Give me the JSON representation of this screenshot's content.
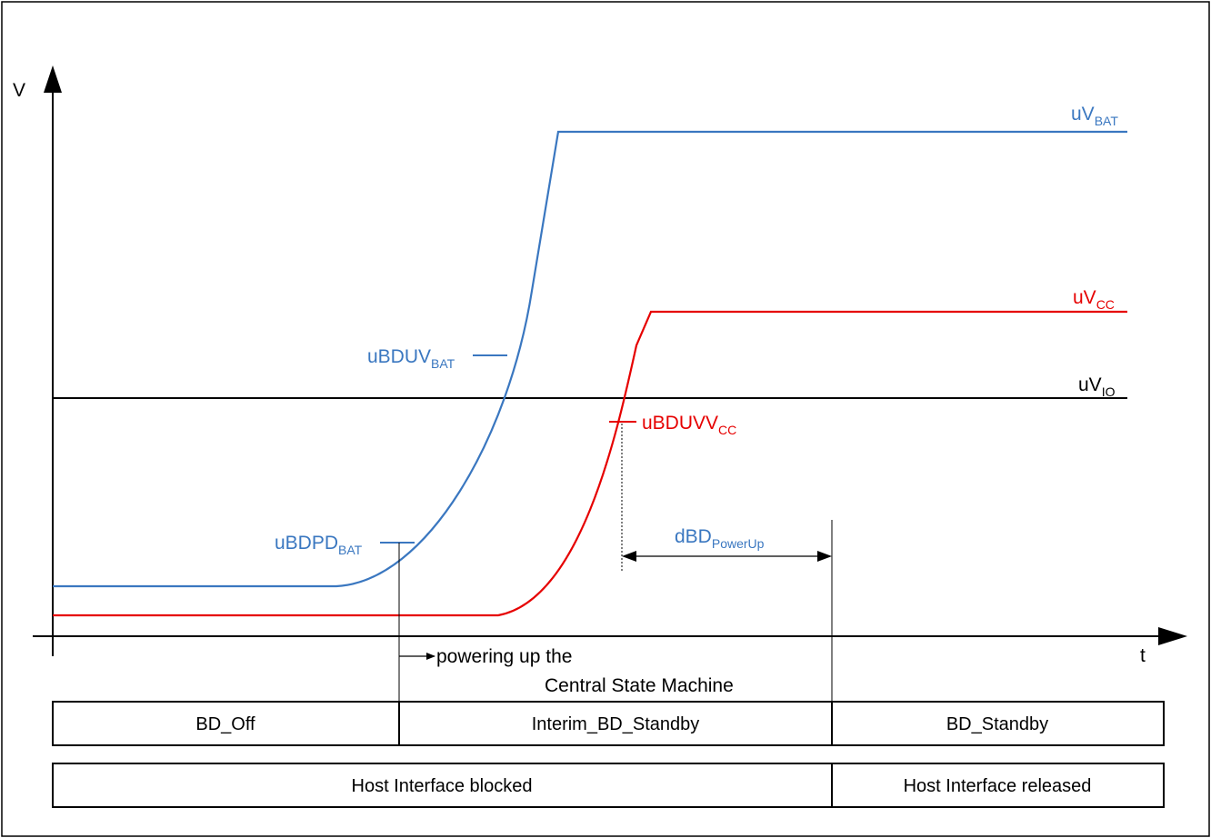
{
  "colors": {
    "vbat": "#3A77C0",
    "vcc": "#E60000",
    "vio": "#000000",
    "frame": "#000000"
  },
  "axes": {
    "y_label": "V",
    "x_label": "t"
  },
  "signals": {
    "vbat": {
      "main": "uV",
      "sub": "BAT"
    },
    "vcc": {
      "main": "uV",
      "sub": "CC"
    },
    "vio": {
      "main": "uV",
      "sub": "IO"
    }
  },
  "thresholds": {
    "bduv_bat": {
      "main": "uBDUV",
      "sub": "BAT"
    },
    "bdpd_bat": {
      "main": "uBDPD",
      "sub": "BAT"
    },
    "bduvv_cc": {
      "main": "uBDUVV",
      "sub": "CC"
    }
  },
  "timing": {
    "power_up": {
      "main": "dBD",
      "sub": "PowerUp"
    }
  },
  "annotation": {
    "line1": "powering up the",
    "line2": "Central State Machine"
  },
  "state_row": [
    "BD_Off",
    "Interim_BD_Standby",
    "BD_Standby"
  ],
  "host_row": [
    "Host Interface blocked",
    "Host Interface released"
  ]
}
